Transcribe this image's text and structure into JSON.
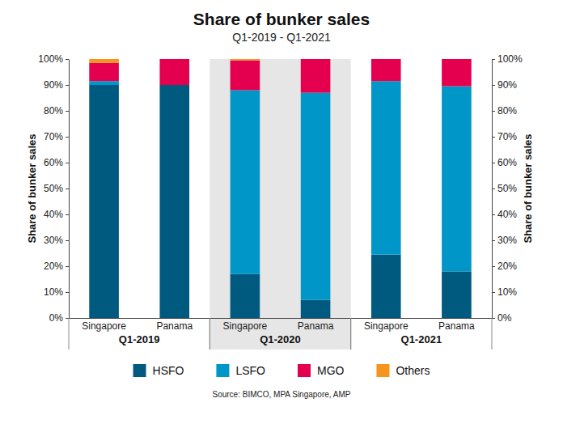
{
  "chart_data": {
    "type": "bar",
    "stacked": true,
    "title": "Share of bunker sales",
    "subtitle": "Q1-2019 - Q1-2021",
    "ylabel": "Share of bunker sales",
    "y2label": "Share of bunker sales",
    "source": "Source: BIMCO, MPA Singapore, AMP",
    "categories": [
      "Singapore",
      "Panama",
      "Singapore",
      "Panama",
      "Singapore",
      "Panama"
    ],
    "groups": [
      "Q1-2019",
      "Q1-2020",
      "Q1-2021"
    ],
    "series": [
      {
        "name": "HSFO",
        "color": "#005a80",
        "values": [
          90,
          90,
          17,
          7,
          24.5,
          18
        ]
      },
      {
        "name": "LSFO",
        "color": "#0096c8",
        "values": [
          1.5,
          0,
          71,
          80,
          67,
          71.5
        ]
      },
      {
        "name": "MGO",
        "color": "#e4004f",
        "values": [
          7,
          10,
          11.5,
          13,
          8.5,
          10.5
        ]
      },
      {
        "name": "Others",
        "color": "#f7941d",
        "values": [
          1.5,
          0,
          0.5,
          0,
          0,
          0
        ]
      }
    ],
    "ylim": [
      0,
      100
    ],
    "yticks": [
      {
        "value": 0,
        "label": "0%"
      },
      {
        "value": 10,
        "label": "10%"
      },
      {
        "value": 20,
        "label": "20%"
      },
      {
        "value": 30,
        "label": "30%"
      },
      {
        "value": 40,
        "label": "40%"
      },
      {
        "value": 50,
        "label": "50%"
      },
      {
        "value": 60,
        "label": "60%"
      },
      {
        "value": 70,
        "label": "70%"
      },
      {
        "value": 80,
        "label": "80%"
      },
      {
        "value": 90,
        "label": "90%"
      },
      {
        "value": 100,
        "label": "100%"
      }
    ],
    "y2lim": [
      0,
      100
    ],
    "y2ticks": [
      {
        "value": 0,
        "label": "0%"
      },
      {
        "value": 10,
        "label": "10%"
      },
      {
        "value": 20,
        "label": "20%"
      },
      {
        "value": 30,
        "label": "30%"
      },
      {
        "value": 40,
        "label": "40%"
      },
      {
        "value": 50,
        "label": "50%"
      },
      {
        "value": 60,
        "label": "60%"
      },
      {
        "value": 70,
        "label": "70%"
      },
      {
        "value": 80,
        "label": "80%"
      },
      {
        "value": 90,
        "label": "90%"
      },
      {
        "value": 100,
        "label": "100%"
      }
    ],
    "grid": false,
    "legend": "bottom"
  }
}
